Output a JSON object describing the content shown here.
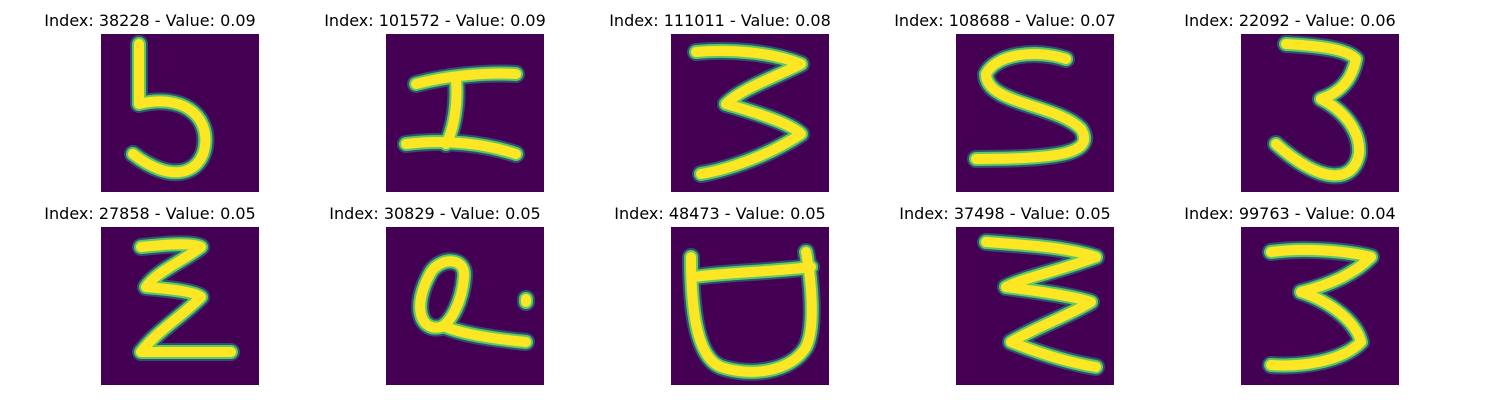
{
  "colors": {
    "background": "#440154",
    "stroke_outer": "#21918c",
    "stroke_mid": "#5ec962",
    "stroke_inner": "#fde725"
  },
  "panels": [
    {
      "title": "Index: 38228 - Value: 0.09",
      "glyph": "5"
    },
    {
      "title": "Index: 101572 - Value: 0.09",
      "glyph": "I"
    },
    {
      "title": "Index: 111011 - Value: 0.08",
      "glyph": "3"
    },
    {
      "title": "Index: 108688 - Value: 0.07",
      "glyph": "S"
    },
    {
      "title": "Index: 22092 - Value: 0.06",
      "glyph": "3b"
    },
    {
      "title": "Index: 27858 - Value: 0.05",
      "glyph": "Z"
    },
    {
      "title": "Index: 30829 - Value: 0.05",
      "glyph": "Q"
    },
    {
      "title": "Index: 48473 - Value: 0.05",
      "glyph": "U"
    },
    {
      "title": "Index: 37498 - Value: 0.05",
      "glyph": "W"
    },
    {
      "title": "Index: 99763 - Value: 0.04",
      "glyph": "3c"
    }
  ]
}
